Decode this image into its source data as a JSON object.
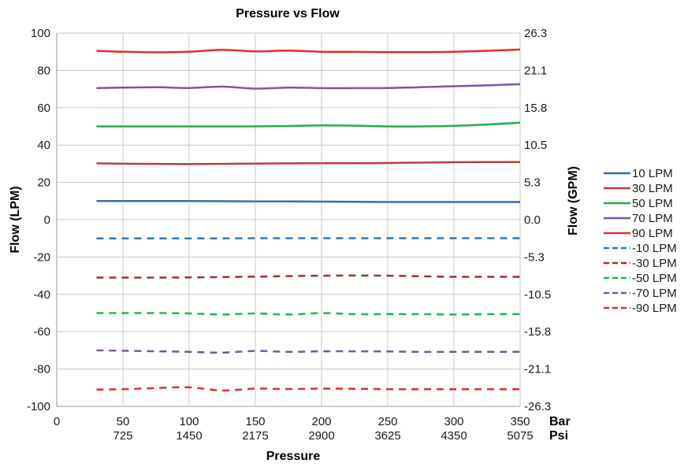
{
  "chart_data": {
    "type": "line",
    "title": "Pressure vs Flow",
    "xlabel": "Pressure",
    "ylabel": "Flow (LPM)",
    "y2label": "Flow (GPM)",
    "xlim": [
      0,
      350
    ],
    "ylim": [
      -100,
      100
    ],
    "x_ticks": [
      "0",
      "50",
      "100",
      "150",
      "200",
      "250",
      "300",
      "350"
    ],
    "x_ticks_psi": [
      "725",
      "1450",
      "2175",
      "2900",
      "3625",
      "4350",
      "5075"
    ],
    "x_unit_bar": "Bar",
    "x_unit_psi": "Psi",
    "y_ticks": [
      "100",
      "80",
      "60",
      "40",
      "20",
      "0",
      "-20",
      "-40",
      "-60",
      "-80",
      "-100"
    ],
    "y2_ticks": [
      "26.3",
      "21.1",
      "15.8",
      "10.5",
      "5.3",
      "0.0",
      "-5.3",
      "-10.5",
      "-15.8",
      "-21.1",
      "-26.3"
    ],
    "grid": true,
    "legend": "right",
    "x": [
      30,
      50,
      75,
      100,
      125,
      150,
      175,
      200,
      225,
      250,
      275,
      300,
      325,
      350
    ],
    "series": [
      {
        "name": "10 LPM",
        "color": "#3a6ab4",
        "dash": false,
        "values": [
          10.0,
          10.0,
          10.0,
          10.0,
          9.9,
          9.8,
          9.8,
          9.7,
          9.6,
          9.5,
          9.5,
          9.5,
          9.5,
          9.5
        ]
      },
      {
        "name": "30 LPM",
        "color": "#b5403c",
        "dash": false,
        "values": [
          30.2,
          30.0,
          29.9,
          29.8,
          29.9,
          30.1,
          30.2,
          30.3,
          30.3,
          30.4,
          30.6,
          30.8,
          30.9,
          30.9
        ]
      },
      {
        "name": "50 LPM",
        "color": "#1fb049",
        "dash": false,
        "values": [
          50.0,
          50.0,
          50.0,
          50.0,
          50.0,
          50.0,
          50.2,
          50.5,
          50.4,
          50.0,
          50.0,
          50.3,
          51.0,
          52.0
        ]
      },
      {
        "name": "70 LPM",
        "color": "#7b55a3",
        "dash": false,
        "values": [
          70.5,
          70.8,
          71.0,
          70.6,
          71.3,
          70.2,
          70.8,
          70.5,
          70.5,
          70.6,
          71.0,
          71.5,
          72.0,
          72.6
        ]
      },
      {
        "name": "90 LPM",
        "color": "#e32c2c",
        "dash": false,
        "values": [
          90.5,
          90.0,
          89.7,
          90.0,
          91.0,
          90.2,
          90.6,
          90.0,
          89.9,
          89.8,
          89.8,
          90.0,
          90.5,
          91.2
        ]
      },
      {
        "name": "-10 LPM",
        "color": "#2a78bd",
        "dash": true,
        "values": [
          -10.0,
          -10.0,
          -10.0,
          -10.0,
          -10.0,
          -9.9,
          -9.9,
          -9.9,
          -9.9,
          -9.9,
          -9.9,
          -9.9,
          -9.9,
          -9.9
        ]
      },
      {
        "name": "-30 LPM",
        "color": "#9a3330",
        "dash": true,
        "values": [
          -31.0,
          -31.0,
          -31.0,
          -30.9,
          -30.7,
          -30.5,
          -30.2,
          -30.0,
          -29.9,
          -30.0,
          -30.3,
          -30.6,
          -30.6,
          -30.6
        ]
      },
      {
        "name": "-50 LPM",
        "color": "#27b34c",
        "dash": true,
        "values": [
          -50.0,
          -50.0,
          -50.0,
          -50.2,
          -50.8,
          -50.2,
          -50.8,
          -50.0,
          -50.6,
          -50.6,
          -50.6,
          -50.8,
          -50.6,
          -50.6
        ]
      },
      {
        "name": "-70 LPM",
        "color": "#7b55a3",
        "dash": true,
        "values": [
          -70.0,
          -70.2,
          -70.5,
          -70.8,
          -71.2,
          -70.3,
          -70.8,
          -70.5,
          -70.5,
          -70.6,
          -70.8,
          -70.8,
          -70.8,
          -70.8
        ]
      },
      {
        "name": "-90 LPM",
        "color": "#e32c2c",
        "dash": true,
        "values": [
          -91.0,
          -90.8,
          -90.2,
          -89.8,
          -91.5,
          -90.5,
          -90.7,
          -90.5,
          -90.6,
          -90.8,
          -90.8,
          -90.8,
          -90.8,
          -90.8
        ]
      }
    ]
  }
}
